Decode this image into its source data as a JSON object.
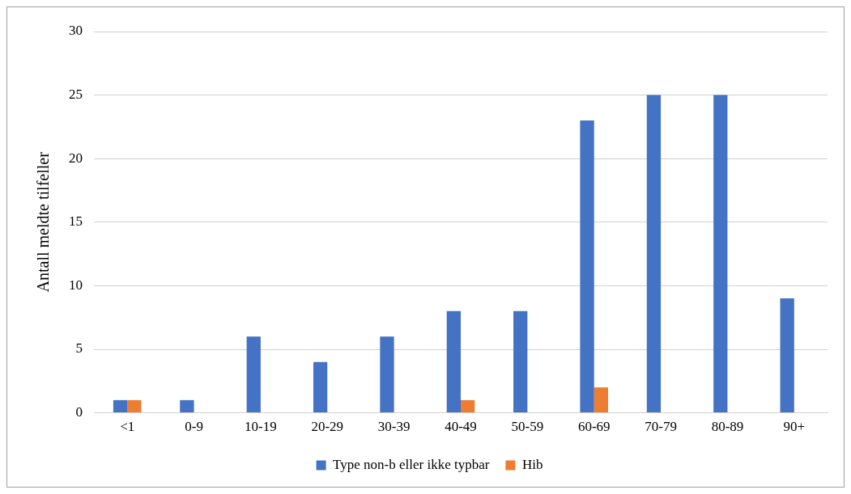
{
  "chart_data": {
    "type": "bar",
    "ylabel": "Antall meldte tilfeller",
    "categories": [
      "<1",
      "0-9",
      "10-19",
      "20-29",
      "30-39",
      "40-49",
      "50-59",
      "60-69",
      "70-79",
      "80-89",
      "90+"
    ],
    "series": [
      {
        "name": "Type non-b eller ikke typbar",
        "color": "#4472c4",
        "values": [
          1,
          1,
          6,
          4,
          6,
          8,
          8,
          23,
          25,
          25,
          9
        ]
      },
      {
        "name": "Hib",
        "color": "#ed7d31",
        "values": [
          1,
          0,
          0,
          0,
          0,
          1,
          0,
          2,
          0,
          0,
          0
        ]
      }
    ],
    "ylim": [
      0,
      30
    ],
    "yticks": [
      0,
      5,
      10,
      15,
      20,
      25,
      30
    ],
    "grid": "y",
    "legend": "bottom"
  }
}
